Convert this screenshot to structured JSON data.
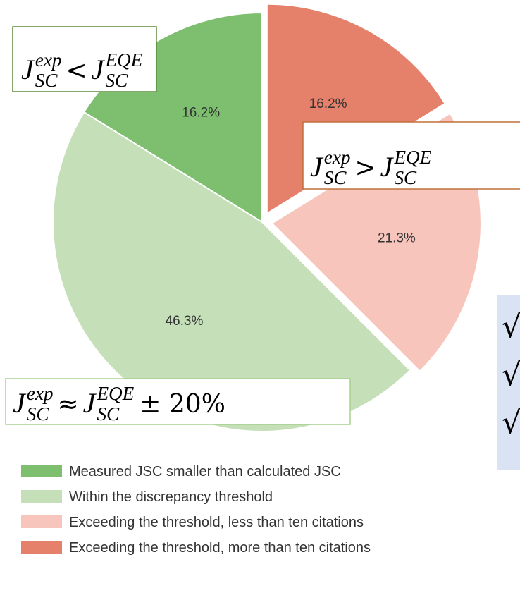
{
  "chart_data": {
    "type": "pie",
    "categories": [
      "Measured JSC smaller than calculated JSC",
      "Within the discrepancy threshold",
      "Exceeding the threshold, less than ten citations",
      "Exceeding the threshold, more than ten citations"
    ],
    "values": [
      16.2,
      46.3,
      21.3,
      16.2
    ],
    "value_labels": [
      "16.2%",
      "46.3%",
      "21.3%",
      "16.2%"
    ],
    "colors": [
      "#7dbf6e",
      "#c5e0b8",
      "#f7c5bc",
      "#e5806a"
    ],
    "annotations": [
      {
        "lhs": {
          "base": "J",
          "sup": "exp",
          "sub": "SC"
        },
        "op": "<",
        "rhs": {
          "base": "J",
          "sup": "EQE",
          "sub": "SC"
        }
      },
      {
        "lhs": {
          "base": "J",
          "sup": "exp",
          "sub": "SC"
        },
        "op": ">",
        "rhs": {
          "base": "J",
          "sup": "EQE",
          "sub": "SC"
        }
      },
      {
        "lhs": {
          "base": "J",
          "sup": "exp",
          "sub": "SC"
        },
        "op": "≈",
        "rhs": {
          "base": "J",
          "sup": "EQE",
          "sub": "SC"
        },
        "tail": "± 20%"
      }
    ],
    "side_box": {
      "items": [
        "√",
        "√",
        "√"
      ]
    }
  }
}
